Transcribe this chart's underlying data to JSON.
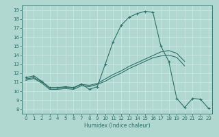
{
  "xlabel": "Humidex (Indice chaleur)",
  "xlim": [
    -0.5,
    23.5
  ],
  "ylim": [
    7.5,
    19.5
  ],
  "xticks": [
    0,
    1,
    2,
    3,
    4,
    5,
    6,
    7,
    8,
    9,
    10,
    11,
    12,
    13,
    14,
    15,
    16,
    17,
    18,
    19,
    20,
    21,
    22,
    23
  ],
  "yticks": [
    8,
    9,
    10,
    11,
    12,
    13,
    14,
    15,
    16,
    17,
    18,
    19
  ],
  "line_color": "#2d7068",
  "bg_color": "#b0d8d0",
  "grid_color": "#c8e8e2",
  "curve_x": [
    0,
    1,
    2,
    3,
    4,
    5,
    6,
    7,
    8,
    9,
    10,
    11,
    12,
    13,
    14,
    15,
    16,
    17,
    18,
    19,
    20,
    21,
    22,
    23
  ],
  "curve_y": [
    11.5,
    11.7,
    11.1,
    10.4,
    10.4,
    10.5,
    10.4,
    10.8,
    10.2,
    10.5,
    13.0,
    15.5,
    17.3,
    18.2,
    18.6,
    18.85,
    18.75,
    15.0,
    13.3,
    9.2,
    8.2,
    9.2,
    9.1,
    8.1
  ],
  "upper_x": [
    0,
    1,
    2,
    3,
    4,
    5,
    6,
    7,
    8,
    9,
    10,
    11,
    12,
    13,
    14,
    15,
    16,
    17,
    18,
    19,
    20
  ],
  "upper_y": [
    11.35,
    11.5,
    11.05,
    10.35,
    10.35,
    10.45,
    10.35,
    10.75,
    10.65,
    10.85,
    11.35,
    11.85,
    12.25,
    12.75,
    13.15,
    13.55,
    13.95,
    14.35,
    14.5,
    14.2,
    13.3
  ],
  "lower_x": [
    0,
    1,
    2,
    3,
    4,
    5,
    6,
    7,
    8,
    9,
    10,
    11,
    12,
    13,
    14,
    15,
    16,
    17,
    18,
    19,
    20
  ],
  "lower_y": [
    11.2,
    11.4,
    10.9,
    10.2,
    10.2,
    10.3,
    10.2,
    10.6,
    10.5,
    10.75,
    11.1,
    11.6,
    12.0,
    12.5,
    12.9,
    13.3,
    13.7,
    13.9,
    14.0,
    13.75,
    12.8
  ],
  "marker": "+",
  "markersize": 3.5,
  "markeredgewidth": 0.8,
  "linewidth": 0.8,
  "tick_labelsize": 5,
  "xlabel_fontsize": 5.5
}
